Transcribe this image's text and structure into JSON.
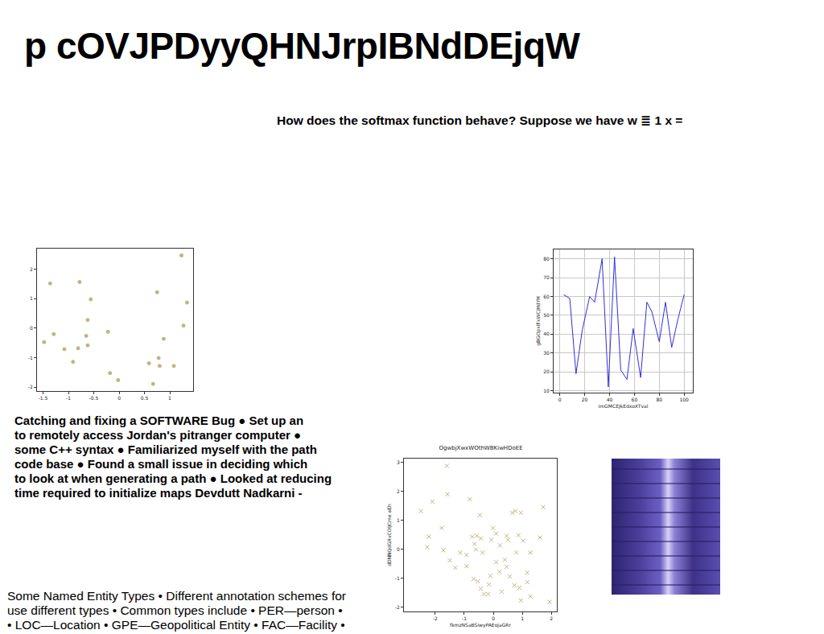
{
  "title": "p cOVJPDyyQHNJrpIBNdDEjqW",
  "question": "How does the softmax function behave? Suppose we have w ≣ 1 x =",
  "paragraph": [
    "Catching and fixing a SOFTWARE Bug ● Set up an",
    "to remotely access Jordan's pitranger computer ●",
    "some C++ syntax ● Familiarized myself with the path",
    "code base ● Found a small issue in deciding which",
    "to look at when generating a path ● Looked at reducing",
    "time required to initialize maps Devdutt Nadkarni -"
  ],
  "notes": [
    "Some Named Entity Types • Different annotation schemes for",
    "use different types • Common types include • PER—person •",
    "• LOC—Location • GPE—Geopolitical Entity • FAC—Facility •"
  ],
  "chart_data": [
    {
      "type": "scatter",
      "color": "#bfb47e",
      "marker": "circle",
      "grid": false,
      "x": [
        1.23,
        -1.36,
        -0.78,
        0.75,
        1.34,
        -0.56,
        -0.62,
        1.27,
        -1.29,
        -0.22,
        -0.65,
        -1.48,
        -0.62,
        -0.81,
        -1.08,
        0.88,
        -0.91,
        0.78,
        0.8,
        0.59,
        1.08,
        -0.18,
        -0.02,
        0.67
      ],
      "y": [
        2.47,
        1.52,
        1.57,
        1.22,
        0.87,
        0.98,
        0.28,
        0.09,
        -0.2,
        -0.12,
        -0.26,
        -0.47,
        -0.58,
        -0.68,
        -0.71,
        -0.36,
        -1.14,
        -1.01,
        -1.28,
        -1.19,
        -1.28,
        -1.52,
        -1.76,
        -1.89
      ],
      "xlim": [
        -1.62,
        1.46
      ],
      "ylim": [
        -2.13,
        2.7
      ],
      "xticks": [
        -1.5,
        -1.0,
        -0.5,
        0.0,
        0.5,
        1.0
      ],
      "yticks": [
        -2,
        -1,
        0,
        1,
        2
      ]
    },
    {
      "type": "line",
      "color": "#2f2fe0",
      "line_style": "solid",
      "grid": true,
      "xlabel": "imGMCEJkEdxoXTval",
      "ylabel": "gBGOpxIFxWCjHdYH",
      "x": [
        3,
        8,
        13,
        18,
        24,
        28,
        34,
        39,
        44,
        49,
        54,
        59,
        65,
        70,
        74,
        80,
        85,
        90,
        95,
        100
      ],
      "y": [
        61,
        59,
        19,
        42,
        60,
        57,
        80,
        12,
        81,
        21,
        16,
        43,
        17,
        57,
        52,
        36,
        57,
        33,
        48,
        61
      ],
      "xlim": [
        -5,
        107
      ],
      "ylim": [
        9,
        85
      ],
      "xticks": [
        0,
        20,
        40,
        60,
        80,
        100
      ],
      "yticks": [
        10,
        20,
        30,
        40,
        50,
        60,
        70,
        80
      ]
    },
    {
      "type": "scatter",
      "color": "#bfb47e",
      "marker": "x",
      "grid": false,
      "title": "OgwbjXwxWOthWBKiwHDoEE",
      "xlabel": "fkmzNSaBSiwyPAEojaGRr",
      "ylabel": "dDNNQdGXvCOIJCme aEh",
      "x": [
        -1.6,
        -1.58,
        -2.1,
        -2.49,
        -1.78,
        -2.22,
        -2.28,
        -1.72,
        -1.5,
        -1.31,
        -1.14,
        -0.92,
        -0.92,
        -0.81,
        -0.73,
        -0.65,
        -0.57,
        -0.46,
        -0.43,
        -0.6,
        -0.37,
        -0.68,
        -0.54,
        -0.32,
        -0.43,
        -0.15,
        -0.18,
        -0.1,
        -0.07,
        -0.01,
        0.1,
        0.1,
        0.21,
        0.29,
        0.4,
        0.46,
        0.46,
        0.51,
        0.57,
        0.65,
        0.76,
        0.79,
        0.95,
        0.87,
        0.73,
        0.9,
        0.95,
        1.03,
        1.17,
        1.17,
        1.28,
        1.61,
        1.72,
        1.94,
        0.23,
        1.28
      ],
      "y": [
        2.88,
        1.9,
        1.65,
        1.32,
        0.74,
        0.44,
        0.08,
        -0.03,
        -0.38,
        -0.63,
        -0.11,
        -0.19,
        -0.58,
        1.73,
        0.44,
        0.19,
        0.47,
        1.18,
        0.38,
        0.0,
        -0.11,
        -1.02,
        -1.1,
        -1.54,
        -1.35,
        -1.21,
        -1.54,
        -0.91,
        0.33,
        0.74,
        0.55,
        -0.44,
        -0.77,
        -1.46,
        -0.36,
        0.47,
        -0.6,
        0.33,
        -0.93,
        1.26,
        1.32,
        -0.11,
        1.26,
        0.49,
        -1.24,
        -1.32,
        -1.76,
        0.3,
        -0.8,
        -1.13,
        -1.62,
        0.41,
        1.46,
        -1.81,
        0.14,
        -0.11
      ],
      "xlim": [
        -3.08,
        2.19
      ],
      "ylim": [
        -2.14,
        3.13
      ],
      "xticks": [
        -2,
        -1,
        0,
        1,
        2
      ],
      "yticks": [
        -2,
        -1,
        0,
        1,
        2,
        3
      ]
    }
  ]
}
